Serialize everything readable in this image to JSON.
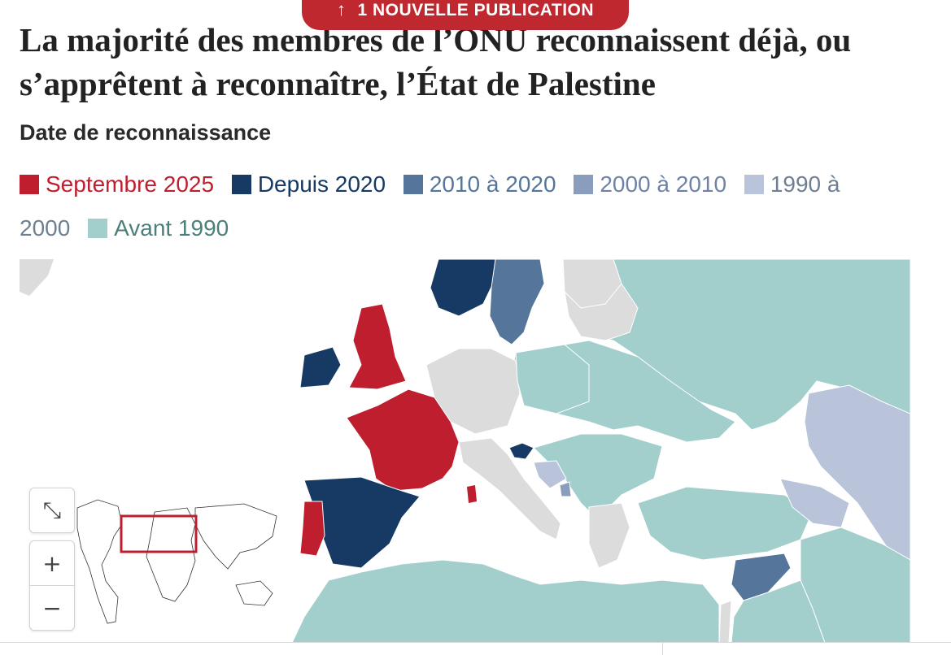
{
  "banner": {
    "label": "1 NOUVELLE PUBLICATION",
    "icon": "arrow-up-icon"
  },
  "title": "La majorité des membres de l’ONU reconnaissent déjà, ou s’apprêtent à reconnaître, l’État de Palestine",
  "subtitle": "Date de reconnaissance",
  "legend": [
    {
      "label": "Septembre 2025",
      "color": "#be1e2d",
      "text_color": "#be1e2d"
    },
    {
      "label": "Depuis 2020",
      "color": "#163a63",
      "text_color": "#163a63"
    },
    {
      "label": "2010 à 2020",
      "color": "#55769a",
      "text_color": "#55769a"
    },
    {
      "label": "2000 à 2010",
      "color": "#8a9dbd",
      "text_color": "#6f82a5"
    },
    {
      "label": "1990 à 2000",
      "color": "#b9c4da",
      "text_color": "#6f7f92"
    },
    {
      "label": "Avant 1990",
      "color": "#a2cfcc",
      "text_color": "#4a7f7b"
    }
  ],
  "map": {
    "no_data_color": "#dcdcdc",
    "sea_color": "#ffffff",
    "region": "Europe, Afrique du Nord et Moyen-Orient",
    "controls": {
      "fullscreen_icon": "collapse-fullscreen-icon",
      "zoom_in": "+",
      "zoom_out": "−"
    },
    "minimap_icon": "world-minimap"
  }
}
